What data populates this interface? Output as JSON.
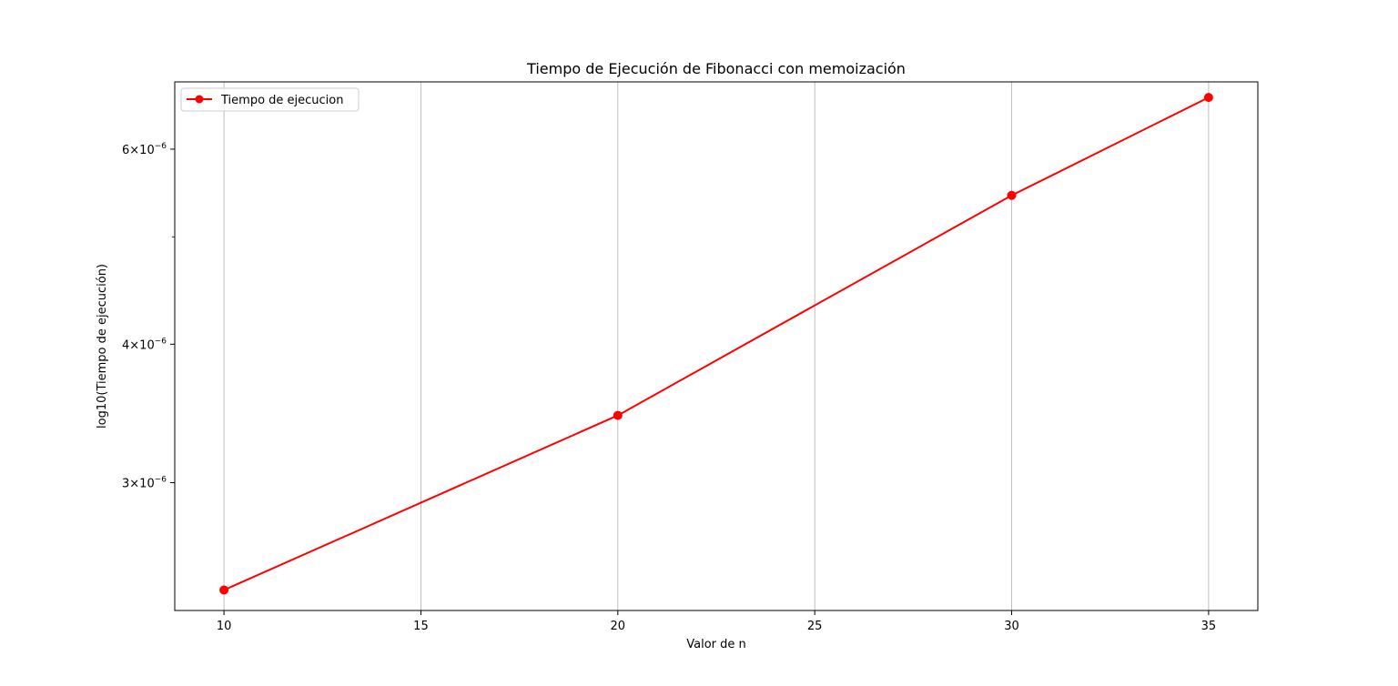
{
  "chart_data": {
    "type": "line",
    "title": "Tiempo de Ejecución de Fibonacci con memoización",
    "xlabel": "Valor de n",
    "ylabel": "log10(Tiempo de ejecución)",
    "yscale": "log",
    "xlim": [
      8.75,
      36.25
    ],
    "ylim": [
      2.3e-06,
      6.9e-06
    ],
    "grid": "x-axis only",
    "legend_position": "top-left",
    "x_ticks": [
      10,
      15,
      20,
      25,
      30,
      35
    ],
    "x_tick_labels": [
      "10",
      "15",
      "20",
      "25",
      "30",
      "35"
    ],
    "y_ticks": [
      {
        "value": 3e-06,
        "mantissa": "3",
        "exponent": "−6"
      },
      {
        "value": 4e-06,
        "mantissa": "4",
        "exponent": "−6"
      },
      {
        "value": 6e-06,
        "mantissa": "6",
        "exponent": "−6"
      }
    ],
    "y_minor_ticks": [
      5e-06
    ],
    "series": [
      {
        "name": "Tiempo de ejecucion",
        "color": "#ff0000",
        "marker": "circle",
        "x": [
          10,
          20,
          30,
          35
        ],
        "y": [
          2.4e-06,
          3.45e-06,
          5.45e-06,
          6.68e-06
        ]
      }
    ]
  }
}
